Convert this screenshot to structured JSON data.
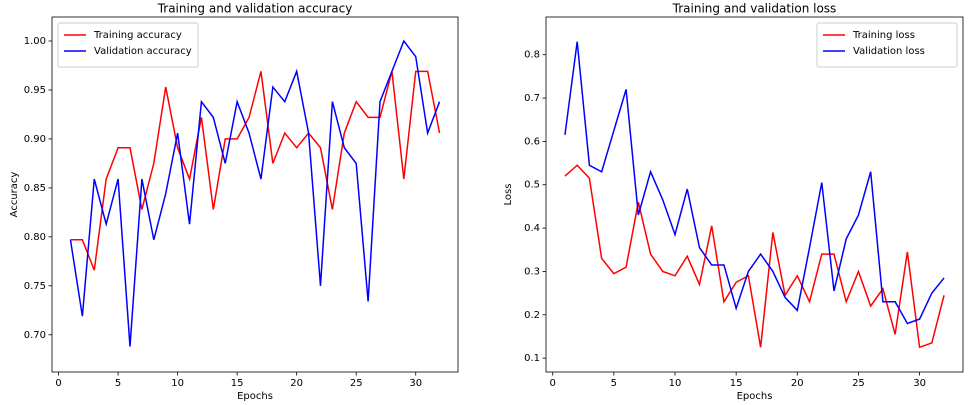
{
  "chart_data": [
    {
      "type": "line",
      "title": "Training and validation accuracy",
      "xlabel": "Epochs",
      "ylabel": "Accuracy",
      "x": [
        1,
        2,
        3,
        4,
        5,
        6,
        7,
        8,
        9,
        10,
        11,
        12,
        13,
        14,
        15,
        16,
        17,
        18,
        19,
        20,
        21,
        22,
        23,
        24,
        25,
        26,
        27,
        28,
        29,
        30,
        31,
        32
      ],
      "series": [
        {
          "name": "Training accuracy",
          "color": "#ff0000",
          "values": [
            0.797,
            0.797,
            0.766,
            0.859,
            0.891,
            0.891,
            0.828,
            0.875,
            0.953,
            0.891,
            0.859,
            0.922,
            0.828,
            0.9,
            0.9,
            0.922,
            0.969,
            0.875,
            0.906,
            0.891,
            0.906,
            0.891,
            0.828,
            0.906,
            0.938,
            0.922,
            0.922,
            0.969,
            0.859,
            0.969,
            0.969,
            0.906
          ]
        },
        {
          "name": "Validation accuracy",
          "color": "#0000ff",
          "values": [
            0.797,
            0.719,
            0.859,
            0.813,
            0.859,
            0.688,
            0.859,
            0.797,
            0.844,
            0.906,
            0.813,
            0.938,
            0.922,
            0.875,
            0.938,
            0.906,
            0.859,
            0.953,
            0.938,
            0.969,
            0.906,
            0.75,
            0.938,
            0.891,
            0.875,
            0.734,
            0.938,
            0.969,
            1.0,
            0.984,
            0.906,
            0.938
          ]
        }
      ],
      "xlim": [
        -0.55,
        33.55
      ],
      "xticks": [
        0,
        5,
        10,
        15,
        20,
        25,
        30
      ],
      "ylim": [
        0.662,
        1.0245
      ],
      "yticks": [
        {
          "value": 0.7,
          "label": "0.70"
        },
        {
          "value": 0.75,
          "label": "0.75"
        },
        {
          "value": 0.8,
          "label": "0.80"
        },
        {
          "value": 0.85,
          "label": "0.85"
        },
        {
          "value": 0.9,
          "label": "0.90"
        },
        {
          "value": 0.95,
          "label": "0.95"
        },
        {
          "value": 1.0,
          "label": "1.00"
        }
      ],
      "legend": "upper left"
    },
    {
      "type": "line",
      "title": "Training and validation loss",
      "xlabel": "Epochs",
      "ylabel": "Loss",
      "x": [
        1,
        2,
        3,
        4,
        5,
        6,
        7,
        8,
        9,
        10,
        11,
        12,
        13,
        14,
        15,
        16,
        17,
        18,
        19,
        20,
        21,
        22,
        23,
        24,
        25,
        26,
        27,
        28,
        29,
        30,
        31,
        32
      ],
      "series": [
        {
          "name": "Training loss",
          "color": "#ff0000",
          "values": [
            0.52,
            0.545,
            0.515,
            0.33,
            0.295,
            0.31,
            0.46,
            0.34,
            0.3,
            0.29,
            0.335,
            0.27,
            0.405,
            0.23,
            0.275,
            0.29,
            0.125,
            0.39,
            0.245,
            0.29,
            0.23,
            0.34,
            0.34,
            0.23,
            0.3,
            0.22,
            0.26,
            0.155,
            0.345,
            0.125,
            0.135,
            0.245
          ]
        },
        {
          "name": "Validation loss",
          "color": "#0000ff",
          "values": [
            0.615,
            0.83,
            0.545,
            0.53,
            0.625,
            0.72,
            0.43,
            0.53,
            0.465,
            0.385,
            0.49,
            0.355,
            0.315,
            0.315,
            0.215,
            0.3,
            0.34,
            0.3,
            0.24,
            0.21,
            0.355,
            0.505,
            0.255,
            0.375,
            0.43,
            0.53,
            0.23,
            0.23,
            0.18,
            0.19,
            0.25,
            0.285
          ]
        }
      ],
      "xlim": [
        -0.55,
        33.55
      ],
      "xticks": [
        0,
        5,
        10,
        15,
        20,
        25,
        30
      ],
      "ylim": [
        0.068,
        0.887
      ],
      "yticks": [
        0.1,
        0.2,
        0.3,
        0.4,
        0.5,
        0.6,
        0.7,
        0.8
      ],
      "legend": "upper right"
    }
  ]
}
